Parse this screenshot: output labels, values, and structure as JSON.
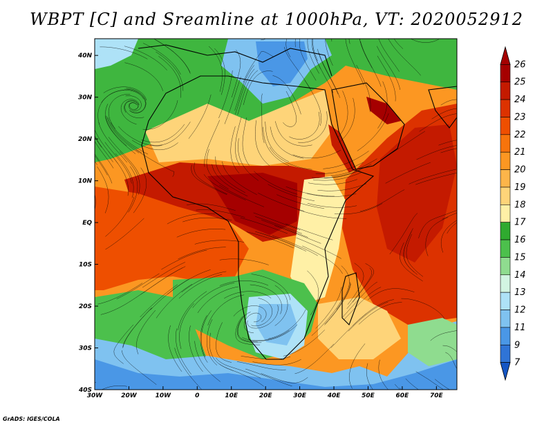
{
  "title": "WBPT [C] and Sreamline at 1000hPa, VT: 2020052912",
  "credit": "GrADS: IGES/COLA",
  "map": {
    "lon_range": [
      -30,
      76
    ],
    "lat_range": [
      -40,
      44
    ],
    "lon_ticks": [
      {
        "value": -30,
        "label": "30W"
      },
      {
        "value": -20,
        "label": "20W"
      },
      {
        "value": -10,
        "label": "10W"
      },
      {
        "value": 0,
        "label": "0"
      },
      {
        "value": 10,
        "label": "10E"
      },
      {
        "value": 20,
        "label": "20E"
      },
      {
        "value": 30,
        "label": "30E"
      },
      {
        "value": 40,
        "label": "40E"
      },
      {
        "value": 50,
        "label": "50E"
      },
      {
        "value": 60,
        "label": "60E"
      },
      {
        "value": 70,
        "label": "70E"
      }
    ],
    "lat_ticks": [
      {
        "value": 40,
        "label": "40N"
      },
      {
        "value": 30,
        "label": "30N"
      },
      {
        "value": 20,
        "label": "20N"
      },
      {
        "value": 10,
        "label": "10N"
      },
      {
        "value": 0,
        "label": "EQ"
      },
      {
        "value": -10,
        "label": "10S"
      },
      {
        "value": -20,
        "label": "20S"
      },
      {
        "value": -30,
        "label": "30S"
      },
      {
        "value": -40,
        "label": "40S"
      }
    ]
  },
  "colorbar": {
    "levels": [
      "26",
      "25",
      "24",
      "23",
      "22",
      "21",
      "20",
      "19",
      "18",
      "17",
      "16",
      "15",
      "14",
      "13",
      "12",
      "11",
      "9",
      "7"
    ],
    "colors": [
      "#a50000",
      "#c41a00",
      "#dc3200",
      "#ee4f00",
      "#f7740c",
      "#fc9722",
      "#fdb54a",
      "#fed479",
      "#fff0a6",
      "#2faa2f",
      "#4cc04c",
      "#8fdc8f",
      "#d2f5e2",
      "#aee2f7",
      "#7fc2f0",
      "#4a97e6",
      "#2f74d6",
      "#1556c4"
    ]
  }
}
